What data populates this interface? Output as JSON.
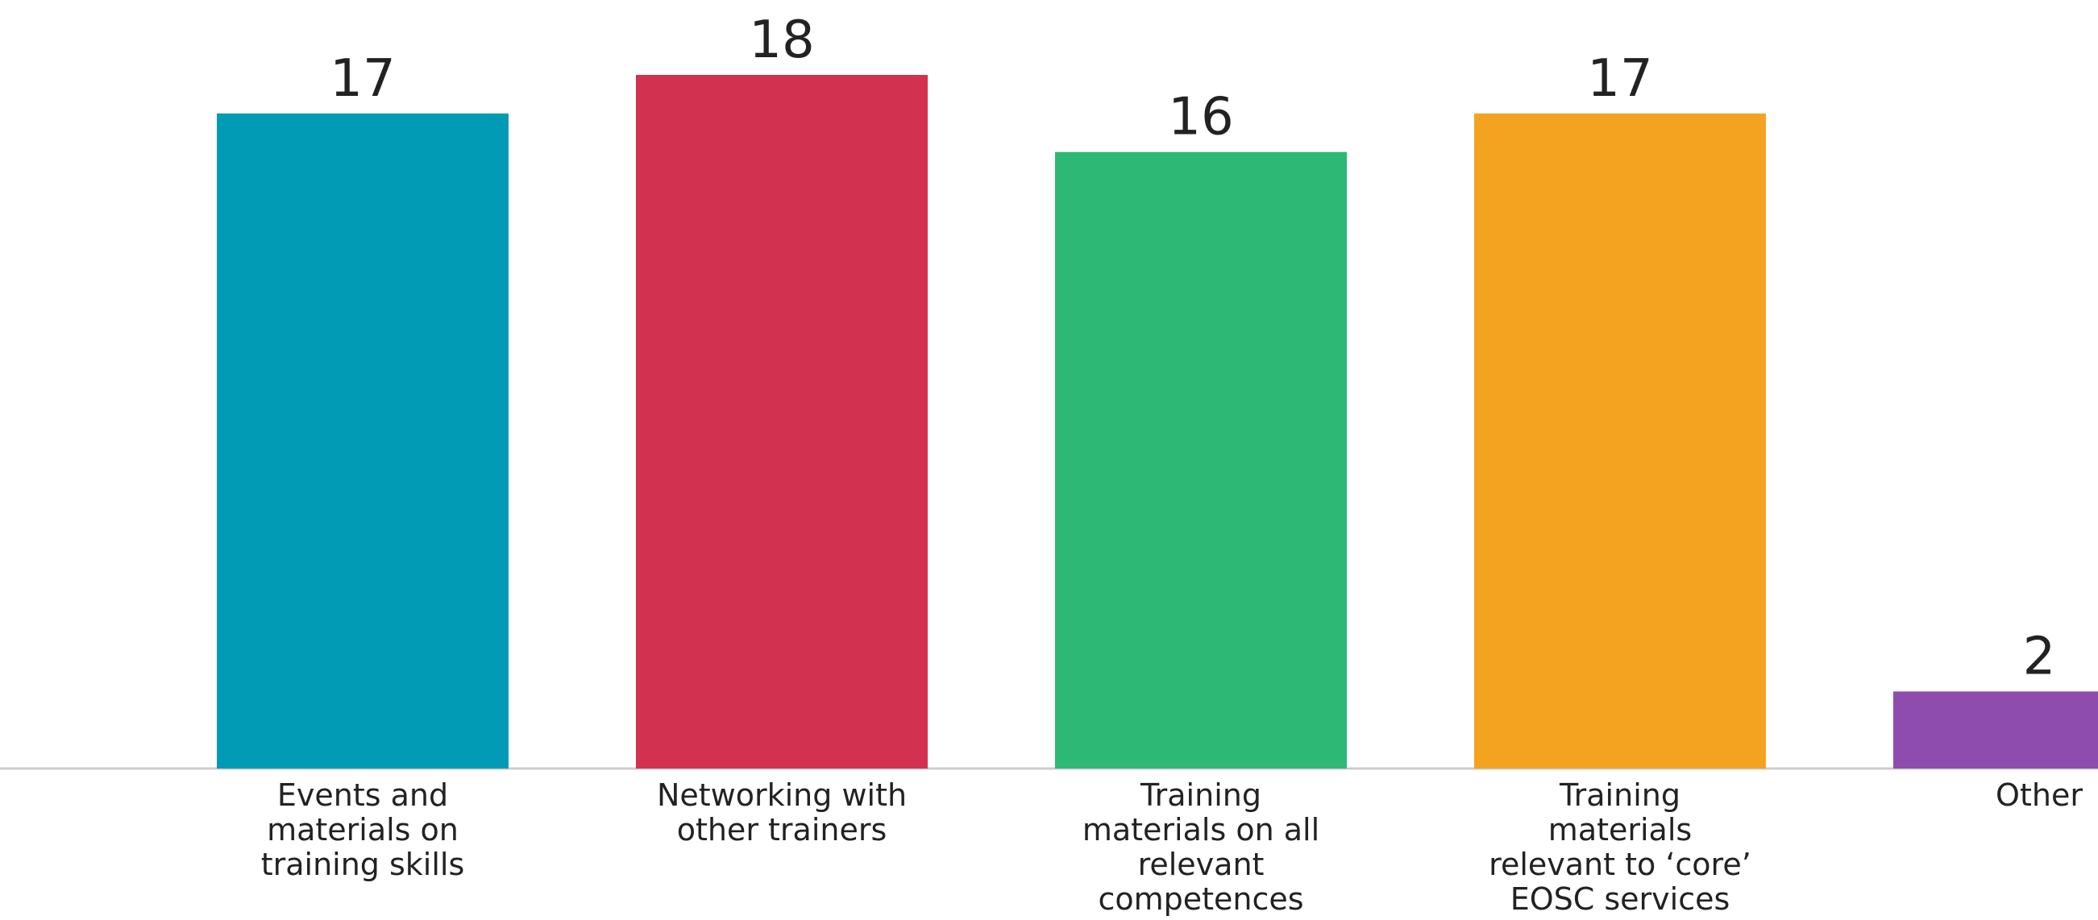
{
  "chart_data": {
    "type": "bar",
    "categories": [
      [
        "Events and",
        "materials on",
        "training skills"
      ],
      [
        "Networking with",
        "other trainers"
      ],
      [
        "Training",
        "materials on all",
        "relevant",
        "competences"
      ],
      [
        "Training",
        "materials",
        "relevant to ‘core’",
        "EOSC services"
      ],
      [
        "Other"
      ]
    ],
    "values": [
      17,
      18,
      16,
      17,
      2
    ],
    "colors": [
      "#019BB6",
      "#D2324F",
      "#2DB975",
      "#F4A321",
      "#8E4CAF"
    ],
    "axis_color": "#cccccc",
    "ylim": [
      0,
      18
    ],
    "title": "",
    "xlabel": "",
    "ylabel": "",
    "grid": false,
    "legend": "none"
  }
}
